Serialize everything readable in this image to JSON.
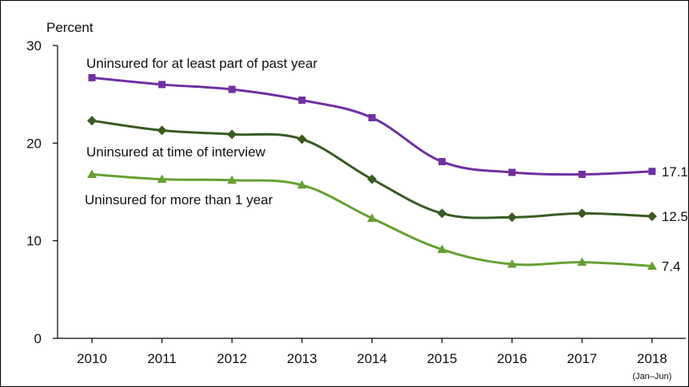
{
  "chart_data": {
    "type": "line",
    "ylabel": "Percent",
    "ylim": [
      0,
      30
    ],
    "yticks": [
      0,
      10,
      20,
      30
    ],
    "categories": [
      "2010",
      "2011",
      "2012",
      "2013",
      "2014",
      "2015",
      "2016",
      "2017",
      "2018"
    ],
    "category_note": "(Jan–Jun)",
    "grid": false,
    "series": [
      {
        "name": "Uninsured for at least part of past year",
        "color": "#7030a0",
        "marker": "square",
        "values": [
          26.7,
          26.0,
          25.5,
          24.4,
          22.6,
          18.1,
          17.0,
          16.8,
          17.1
        ],
        "end_label": "17.1"
      },
      {
        "name": "Uninsured at time of interview",
        "color": "#3a5a22",
        "marker": "diamond",
        "values": [
          22.3,
          21.3,
          20.9,
          20.4,
          16.3,
          12.8,
          12.4,
          12.8,
          12.5
        ],
        "end_label": "12.5"
      },
      {
        "name": "Uninsured for more than 1 year",
        "color": "#66a033",
        "marker": "triangle",
        "values": [
          16.8,
          16.3,
          16.2,
          15.7,
          12.3,
          9.1,
          7.6,
          7.8,
          7.4
        ],
        "end_label": "7.4"
      }
    ]
  }
}
